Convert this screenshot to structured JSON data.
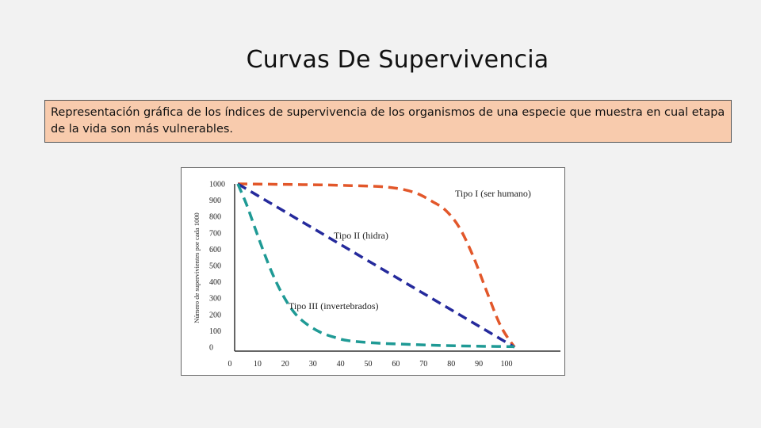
{
  "slide": {
    "title": "Curvas De Supervivencia",
    "description": "Representación gráfica de los índices de supervivencia de los organismos de una especie que muestra en cual etapa de la vida son más vulnerables."
  },
  "chart_data": {
    "type": "line",
    "title": "",
    "xlabel": "",
    "ylabel": "Número de supervivientes por cada 1000",
    "xlim": [
      0,
      100
    ],
    "ylim": [
      0,
      1000
    ],
    "x_ticks": [
      "0",
      "10",
      "20",
      "30",
      "40",
      "50",
      "60",
      "70",
      "80",
      "90",
      "100"
    ],
    "y_ticks": [
      "1000",
      "900",
      "800",
      "700",
      "600",
      "500",
      "400",
      "300",
      "200",
      "100",
      "0"
    ],
    "grid": false,
    "legend": "inline labels",
    "series": [
      {
        "name": "Tipo I (ser humano)",
        "color": "#e2572a",
        "x": [
          0,
          10,
          20,
          30,
          40,
          50,
          55,
          60,
          65,
          70,
          75,
          80,
          85,
          90,
          95,
          100
        ],
        "y": [
          1000,
          998,
          996,
          994,
          990,
          985,
          978,
          965,
          940,
          895,
          840,
          735,
          560,
          340,
          130,
          0
        ]
      },
      {
        "name": "Tipo II (hidra)",
        "color": "#252a9c",
        "x": [
          0,
          10,
          20,
          30,
          40,
          50,
          60,
          70,
          80,
          90,
          100
        ],
        "y": [
          1000,
          900,
          800,
          700,
          600,
          500,
          400,
          300,
          200,
          100,
          0
        ]
      },
      {
        "name": "Tipo III (invertebrados)",
        "color": "#1f9a95",
        "x": [
          0,
          3,
          6,
          9,
          12,
          15,
          18,
          21,
          25,
          30,
          35,
          40,
          50,
          60,
          70,
          80,
          90,
          100
        ],
        "y": [
          1000,
          880,
          740,
          600,
          470,
          360,
          270,
          200,
          140,
          90,
          60,
          40,
          25,
          18,
          12,
          8,
          5,
          3
        ]
      }
    ]
  }
}
